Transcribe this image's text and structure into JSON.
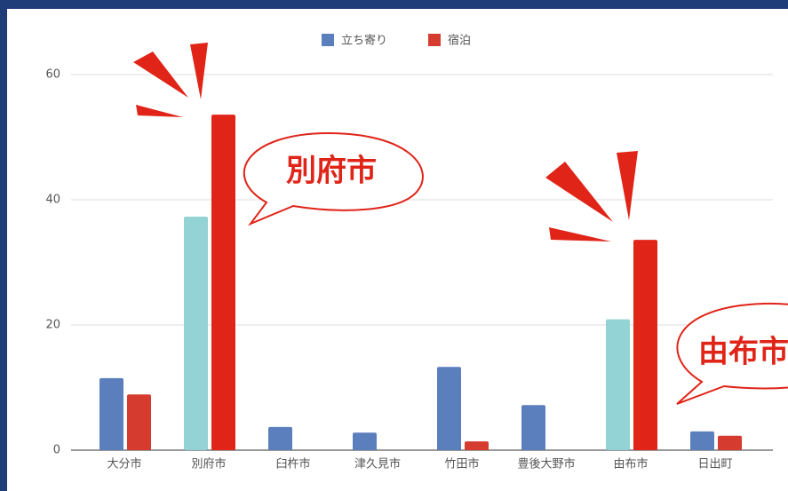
{
  "chart_data": {
    "type": "bar",
    "categories": [
      "大分市",
      "別府市",
      "臼杵市",
      "津久見市",
      "竹田市",
      "豊後大野市",
      "由布市",
      "日出町"
    ],
    "series": [
      {
        "name": "立ち寄り",
        "color": "#5b7fbd",
        "colors": [
          "#5b7fbd",
          "#93d3d6",
          "#5b7fbd",
          "#5b7fbd",
          "#5b7fbd",
          "#5b7fbd",
          "#93d3d6",
          "#5b7fbd"
        ],
        "values": [
          11.5,
          37.3,
          3.7,
          2.8,
          13.3,
          7.2,
          20.9,
          3.0
        ]
      },
      {
        "name": "宿泊",
        "color": "#d63b2f",
        "colors": [
          "#d63b2f",
          "#e02418",
          "#d63b2f",
          "#d63b2f",
          "#d63b2f",
          "#d63b2f",
          "#e02418",
          "#d63b2f"
        ],
        "values": [
          8.9,
          53.6,
          0,
          0,
          1.4,
          0,
          33.6,
          2.3
        ]
      }
    ],
    "annotations": [
      "別府市",
      "由布市"
    ],
    "ylim": [
      0,
      60
    ],
    "yticks": [
      0,
      20,
      40,
      60
    ],
    "grid": true,
    "legend": "top"
  }
}
